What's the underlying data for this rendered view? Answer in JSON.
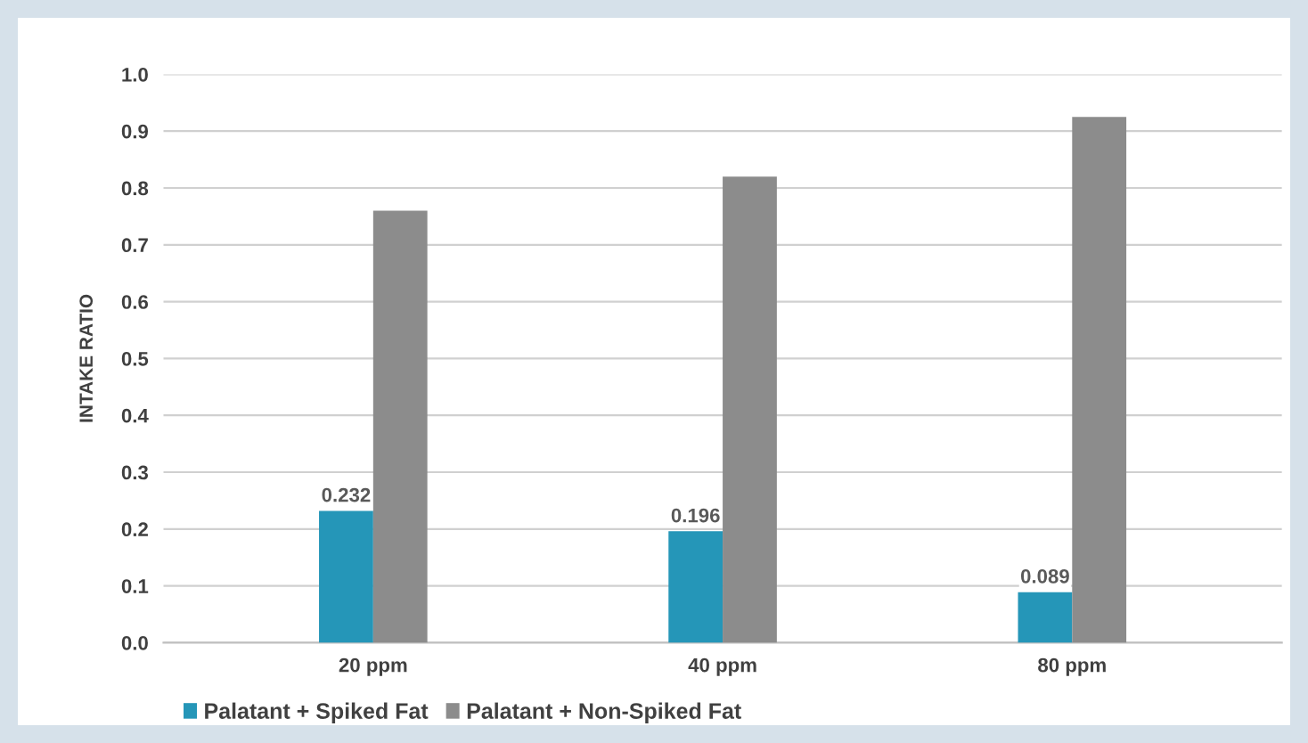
{
  "chart_data": {
    "type": "bar",
    "ylabel": "INTAKE RATIO",
    "categories": [
      "20 ppm",
      "40 ppm",
      "80 ppm"
    ],
    "series": [
      {
        "name": "Palatant + Spiked Fat",
        "color": "#2596b8",
        "values": [
          0.232,
          0.196,
          0.089
        ],
        "value_labels": [
          "0.232",
          "0.196",
          "0.089"
        ]
      },
      {
        "name": "Palatant + Non-Spiked Fat",
        "color": "#8c8c8c",
        "values": [
          0.76,
          0.82,
          0.925
        ]
      }
    ],
    "ylim": [
      0,
      1.0
    ],
    "yticks": [
      {
        "value": 0,
        "label": "0.0"
      },
      0.1,
      0.2,
      0.3,
      0.4,
      0.5,
      0.6,
      0.7,
      0.8,
      0.9,
      {
        "value": 1.0,
        "label": "1.0"
      }
    ],
    "grid": "y",
    "legend": "bottom"
  }
}
